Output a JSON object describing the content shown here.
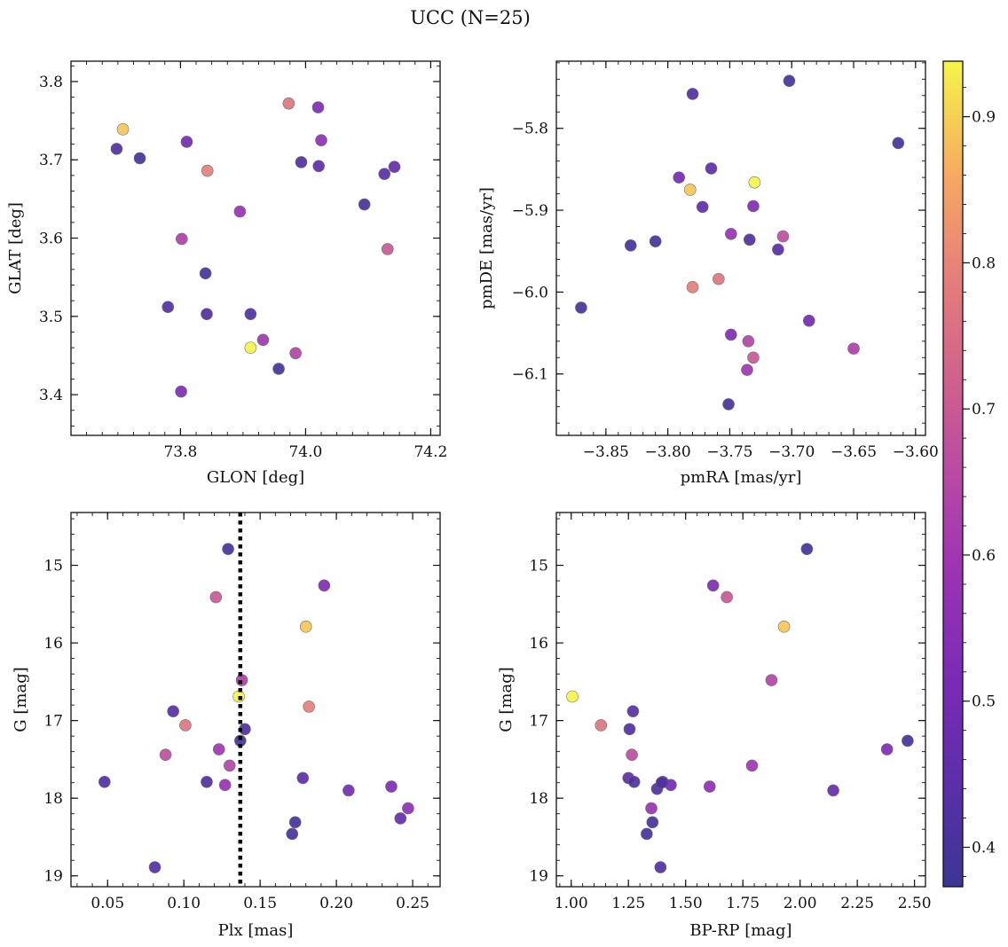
{
  "figure": {
    "title": "UCC (N=25)"
  },
  "chart_data": [
    {
      "type": "scatter",
      "name": "glon-glat",
      "xlabel": "GLON [deg]",
      "ylabel": "GLAT [deg]",
      "xlim": [
        73.625,
        74.215
      ],
      "ylim": [
        3.348,
        3.826
      ],
      "invert_y": false,
      "xticks": [
        73.8,
        74.0,
        74.2
      ],
      "xtick_labels": [
        "73.8",
        "74.0",
        "74.2"
      ],
      "xminor": 0.025,
      "yticks": [
        3.4,
        3.5,
        3.6,
        3.7,
        3.8
      ],
      "ytick_labels": [
        "3.4",
        "3.5",
        "3.6",
        "3.7",
        "3.8"
      ],
      "yminor": 0.02,
      "x": [
        73.708,
        73.698,
        73.735,
        73.81,
        73.843,
        73.973,
        74.02,
        74.025,
        73.993,
        74.021,
        74.126,
        74.142,
        74.094,
        73.895,
        73.802,
        73.84,
        73.78,
        73.842,
        73.912,
        73.932,
        73.912,
        73.984,
        73.957,
        73.801,
        74.131
      ],
      "y": [
        3.739,
        3.714,
        3.702,
        3.723,
        3.686,
        3.772,
        3.767,
        3.725,
        3.697,
        3.692,
        3.682,
        3.691,
        3.643,
        3.634,
        3.599,
        3.555,
        3.512,
        3.503,
        3.503,
        3.47,
        3.46,
        3.453,
        3.433,
        3.404,
        3.586
      ],
      "c": [
        0.89,
        0.42,
        0.4,
        0.5,
        0.79,
        0.77,
        0.53,
        0.56,
        0.42,
        0.45,
        0.44,
        0.47,
        0.4,
        0.58,
        0.63,
        0.4,
        0.43,
        0.42,
        0.42,
        0.6,
        0.94,
        0.64,
        0.4,
        0.53,
        0.7
      ]
    },
    {
      "type": "scatter",
      "name": "pmra-pmde",
      "xlabel": "pmRA [mas/yr]",
      "ylabel": "pmDE [mas/yr]",
      "xlim": [
        -3.89,
        -3.592
      ],
      "ylim": [
        -6.175,
        -5.718
      ],
      "invert_y": false,
      "xticks": [
        -3.85,
        -3.8,
        -3.75,
        -3.7,
        -3.65,
        -3.6
      ],
      "xtick_labels": [
        "−3.85",
        "−3.80",
        "−3.75",
        "−3.70",
        "−3.65",
        "−3.60"
      ],
      "xminor": 0.01,
      "yticks": [
        -6.1,
        -6.0,
        -5.9,
        -5.8
      ],
      "ytick_labels": [
        "−6.1",
        "−6.0",
        "−5.9",
        "−5.8"
      ],
      "yminor": 0.02,
      "x": [
        -3.702,
        -3.78,
        -3.614,
        -3.791,
        -3.782,
        -3.765,
        -3.73,
        -3.772,
        -3.731,
        -3.81,
        -3.83,
        -3.749,
        -3.734,
        -3.707,
        -3.711,
        -3.759,
        -3.78,
        -3.87,
        -3.686,
        -3.749,
        -3.735,
        -3.65,
        -3.731,
        -3.736,
        -3.751
      ],
      "y": [
        -5.742,
        -5.758,
        -5.818,
        -5.86,
        -5.875,
        -5.849,
        -5.866,
        -5.896,
        -5.895,
        -5.938,
        -5.943,
        -5.929,
        -5.936,
        -5.932,
        -5.948,
        -5.984,
        -5.994,
        -6.019,
        -6.035,
        -6.052,
        -6.06,
        -6.069,
        -6.08,
        -6.095,
        -6.137
      ],
      "c": [
        0.4,
        0.42,
        0.4,
        0.5,
        0.89,
        0.45,
        0.94,
        0.45,
        0.53,
        0.4,
        0.4,
        0.58,
        0.42,
        0.67,
        0.44,
        0.77,
        0.79,
        0.4,
        0.5,
        0.53,
        0.64,
        0.63,
        0.7,
        0.6,
        0.4
      ]
    },
    {
      "type": "scatter",
      "name": "plx-g",
      "xlabel": "Plx [mas]",
      "ylabel": "G [mag]",
      "xlim": [
        0.026,
        0.268
      ],
      "ylim": [
        19.14,
        14.32
      ],
      "invert_y": true,
      "xticks": [
        0.05,
        0.1,
        0.15,
        0.2,
        0.25
      ],
      "xtick_labels": [
        "0.05",
        "0.10",
        "0.15",
        "0.20",
        "0.25"
      ],
      "xminor": 0.01,
      "yticks": [
        15,
        16,
        17,
        18,
        19
      ],
      "ytick_labels": [
        "15",
        "16",
        "17",
        "18",
        "19"
      ],
      "yminor": 0.2,
      "vline": {
        "x": 0.137,
        "style": "dotted"
      },
      "x": [
        0.129,
        0.192,
        0.121,
        0.18,
        0.138,
        0.136,
        0.182,
        0.093,
        0.101,
        0.14,
        0.137,
        0.088,
        0.123,
        0.13,
        0.048,
        0.115,
        0.127,
        0.178,
        0.208,
        0.236,
        0.247,
        0.173,
        0.242,
        0.171,
        0.081
      ],
      "y": [
        14.79,
        15.26,
        15.41,
        15.79,
        16.48,
        16.69,
        16.82,
        16.88,
        17.06,
        17.11,
        17.26,
        17.44,
        17.37,
        17.58,
        17.79,
        17.79,
        17.83,
        17.74,
        17.9,
        17.85,
        18.13,
        18.31,
        18.26,
        18.46,
        18.89
      ],
      "c": [
        0.4,
        0.53,
        0.7,
        0.89,
        0.63,
        0.94,
        0.79,
        0.44,
        0.77,
        0.42,
        0.4,
        0.67,
        0.6,
        0.64,
        0.42,
        0.42,
        0.58,
        0.45,
        0.5,
        0.53,
        0.56,
        0.4,
        0.47,
        0.4,
        0.43
      ]
    },
    {
      "type": "scatter",
      "name": "bprp-g",
      "xlabel": "BP-RP [mag]",
      "ylabel": "G [mag]",
      "xlim": [
        0.935,
        2.548
      ],
      "ylim": [
        19.14,
        14.32
      ],
      "invert_y": true,
      "xticks": [
        1.0,
        1.25,
        1.5,
        1.75,
        2.0,
        2.25,
        2.5
      ],
      "xtick_labels": [
        "1.00",
        "1.25",
        "1.50",
        "1.75",
        "2.00",
        "2.25",
        "2.50"
      ],
      "xminor": 0.05,
      "yticks": [
        15,
        16,
        17,
        18,
        19
      ],
      "ytick_labels": [
        "15",
        "16",
        "17",
        "18",
        "19"
      ],
      "yminor": 0.2,
      "x": [
        2.03,
        1.62,
        1.68,
        1.93,
        1.875,
        1.005,
        1.13,
        1.27,
        1.255,
        2.47,
        1.265,
        2.38,
        1.79,
        1.25,
        1.275,
        1.4,
        1.435,
        1.605,
        2.145,
        1.35,
        1.355,
        1.33,
        1.39,
        1.375,
        1.395
      ],
      "y": [
        14.79,
        15.26,
        15.41,
        15.79,
        16.48,
        16.69,
        17.06,
        16.88,
        17.11,
        17.26,
        17.44,
        17.37,
        17.58,
        17.74,
        17.79,
        17.79,
        17.83,
        17.85,
        17.9,
        18.13,
        18.31,
        18.46,
        18.89,
        17.88,
        17.8
      ],
      "c": [
        0.4,
        0.53,
        0.7,
        0.89,
        0.64,
        0.94,
        0.77,
        0.44,
        0.42,
        0.4,
        0.67,
        0.53,
        0.6,
        0.45,
        0.42,
        0.42,
        0.5,
        0.56,
        0.47,
        0.58,
        0.4,
        0.4,
        0.43,
        0.42,
        0.42
      ]
    }
  ],
  "colorbar": {
    "min": 0.373,
    "max": 0.938,
    "ticks": [
      0.4,
      0.5,
      0.6,
      0.7,
      0.8,
      0.9
    ],
    "tick_labels": [
      "0.4",
      "0.5",
      "0.6",
      "0.7",
      "0.8",
      "0.9"
    ],
    "minor": 0.02,
    "colormap": "plasma",
    "stops": [
      "#0d0887",
      "#46039f",
      "#7201a8",
      "#9c179e",
      "#bd3786",
      "#d8576b",
      "#ed7953",
      "#fb9f3a",
      "#fdca26",
      "#f0f921"
    ]
  }
}
